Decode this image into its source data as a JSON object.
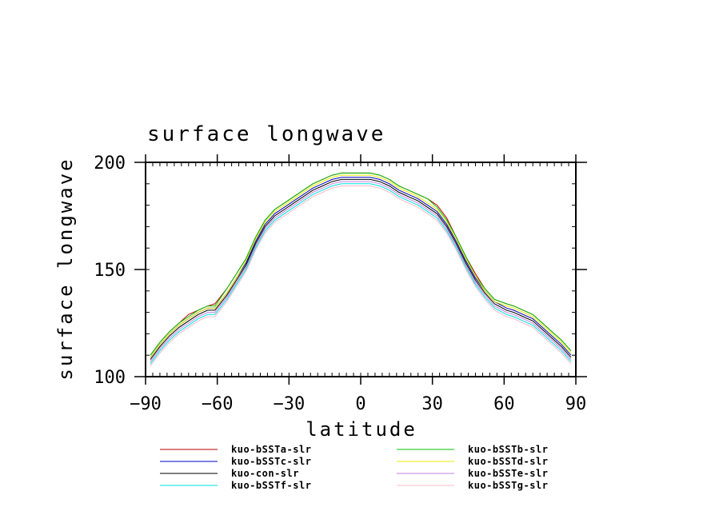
{
  "chart_data": {
    "type": "line",
    "title": "surface longwave",
    "xlabel": "latitude",
    "ylabel": "surface longwave",
    "xlim": [
      -90,
      90
    ],
    "ylim": [
      100,
      200
    ],
    "xticks": [
      -90,
      -60,
      -30,
      0,
      30,
      60,
      90
    ],
    "xtick_labels": [
      "−90",
      "−60",
      "−30",
      "0",
      "30",
      "60",
      "90"
    ],
    "yticks": [
      100,
      150,
      200
    ],
    "ytick_labels": [
      "100",
      "150",
      "200"
    ],
    "legend_position": "bottom",
    "x": [
      -88,
      -84,
      -80,
      -76,
      -72,
      -68,
      -64,
      -61,
      -56,
      -52,
      -48,
      -44,
      -40,
      -36,
      -32,
      -28,
      -24,
      -20,
      -16,
      -12,
      -8,
      -4,
      0,
      4,
      8,
      12,
      16,
      20,
      24,
      28,
      32,
      36,
      40,
      44,
      48,
      52,
      56,
      61,
      64,
      68,
      72,
      76,
      80,
      84,
      88
    ],
    "series": [
      {
        "name": "kuo-bSSTa-slr",
        "color": "#c00000",
        "values": [
          110,
          116,
          121,
          125,
          129,
          131,
          133,
          134,
          141,
          148,
          155,
          165,
          173,
          178,
          181,
          184,
          187,
          190,
          192,
          194,
          195,
          195,
          195,
          195,
          194,
          192,
          189,
          187,
          185,
          183,
          180,
          174,
          165,
          156,
          148,
          141,
          136,
          134,
          133,
          131,
          129,
          125,
          121,
          117,
          112
        ]
      },
      {
        "name": "kuo-bSSTb-slr",
        "color": "#00c000",
        "values": [
          110,
          116,
          121,
          125,
          128,
          131,
          133,
          133,
          141,
          148,
          155,
          165,
          173,
          178,
          181,
          184,
          187,
          190,
          192,
          194,
          195,
          195,
          195,
          195,
          194,
          192,
          189,
          187,
          185,
          183,
          179,
          173,
          165,
          156,
          147,
          141,
          136,
          134,
          133,
          131,
          129,
          125,
          121,
          117,
          112
        ]
      },
      {
        "name": "kuo-bSSTc-slr",
        "color": "#0000c0",
        "values": [
          109,
          115,
          120,
          124,
          127,
          130,
          132,
          132,
          139,
          146,
          153,
          163,
          171,
          176,
          179,
          182,
          185,
          188,
          190,
          192,
          193,
          193,
          193,
          193,
          192,
          190,
          187,
          185,
          183,
          180,
          177,
          171,
          163,
          154,
          146,
          140,
          135,
          132,
          131,
          129,
          127,
          123,
          119,
          115,
          110
        ]
      },
      {
        "name": "kuo-bSSTd-slr",
        "color": "#e8e800",
        "values": [
          109,
          115,
          120,
          124,
          127,
          130,
          132,
          132,
          139,
          146,
          154,
          164,
          172,
          177,
          180,
          183,
          186,
          189,
          191,
          193,
          194,
          194,
          194,
          194,
          193,
          191,
          188,
          186,
          184,
          181,
          178,
          172,
          164,
          155,
          147,
          140,
          135,
          133,
          132,
          130,
          128,
          124,
          120,
          116,
          111
        ]
      },
      {
        "name": "kuo-con-slr",
        "color": "#000000",
        "values": [
          108,
          114,
          119,
          123,
          126,
          129,
          131,
          131,
          138,
          145,
          152,
          162,
          170,
          175,
          178,
          181,
          184,
          187,
          189,
          191,
          192,
          192,
          192,
          192,
          191,
          189,
          186,
          184,
          182,
          179,
          176,
          170,
          162,
          153,
          145,
          139,
          134,
          131,
          130,
          128,
          126,
          122,
          118,
          114,
          109
        ]
      },
      {
        "name": "kuo-bSSTe-slr",
        "color": "#c080e0",
        "values": [
          107,
          113,
          118,
          122,
          125,
          128,
          130,
          130,
          137,
          144,
          151,
          161,
          169,
          174,
          177,
          180,
          183,
          186,
          188,
          190,
          191,
          191,
          191,
          191,
          190,
          188,
          185,
          183,
          181,
          178,
          175,
          169,
          161,
          152,
          144,
          138,
          133,
          130,
          129,
          127,
          125,
          121,
          117,
          113,
          108
        ]
      },
      {
        "name": "kuo-bSSTf-slr",
        "color": "#00e0e0",
        "values": [
          106,
          112,
          117,
          121,
          124,
          127,
          129,
          129,
          136,
          143,
          150,
          160,
          168,
          173,
          176,
          179,
          182,
          185,
          187,
          189,
          190,
          190,
          190,
          190,
          189,
          187,
          184,
          182,
          180,
          177,
          174,
          168,
          160,
          151,
          143,
          137,
          132,
          129,
          128,
          126,
          124,
          120,
          116,
          112,
          107
        ]
      },
      {
        "name": "kuo-bSSTg-slr",
        "color": "#ffb8c8",
        "values": [
          105,
          111,
          116,
          120,
          123,
          126,
          128,
          128,
          135,
          142,
          149,
          159,
          167,
          172,
          175,
          178,
          181,
          184,
          186,
          188,
          189,
          189,
          189,
          189,
          188,
          186,
          183,
          181,
          179,
          176,
          173,
          167,
          159,
          150,
          142,
          136,
          131,
          128,
          127,
          125,
          123,
          119,
          115,
          111,
          106
        ]
      }
    ],
    "legend_order": [
      0,
      1,
      2,
      3,
      4,
      5,
      6,
      7
    ]
  }
}
